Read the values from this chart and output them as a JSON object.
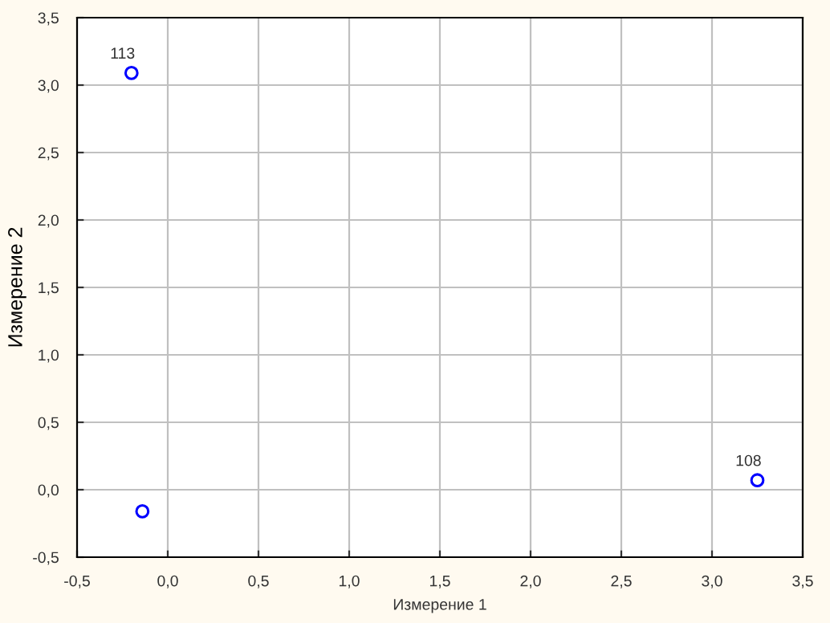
{
  "chart_data": {
    "type": "scatter",
    "xlabel": "Измерение 1",
    "ylabel": "Измерение 2",
    "x": [
      -0.2,
      3.25,
      -0.14
    ],
    "values": [
      3.09,
      0.07,
      -0.16
    ],
    "color": "#0000ff",
    "marker": "circle",
    "grid": true,
    "xlim": [
      -0.5,
      3.5
    ],
    "ylim": [
      -0.5,
      3.5
    ],
    "xticks": [
      {
        "value": -0.5,
        "label": "-0,5"
      },
      {
        "value": 0,
        "label": "0,0"
      },
      {
        "value": 0.5,
        "label": "0,5"
      },
      {
        "value": 1,
        "label": "1,0"
      },
      {
        "value": 1.5,
        "label": "1,5"
      },
      {
        "value": 2,
        "label": "2,0"
      },
      {
        "value": 2.5,
        "label": "2,5"
      },
      {
        "value": 3,
        "label": "3,0"
      },
      {
        "value": 3.5,
        "label": "3,5"
      }
    ],
    "yticks": [
      {
        "value": -0.5,
        "label": "-0,5"
      },
      {
        "value": 0,
        "label": "0,0"
      },
      {
        "value": 0.5,
        "label": "0,5"
      },
      {
        "value": 1,
        "label": "1,0"
      },
      {
        "value": 1.5,
        "label": "1,5"
      },
      {
        "value": 2,
        "label": "2,0"
      },
      {
        "value": 2.5,
        "label": "2,5"
      },
      {
        "value": 3,
        "label": "3,0"
      },
      {
        "value": 3.5,
        "label": "3,5"
      }
    ],
    "annotations": [
      {
        "text": "113",
        "x": -0.2,
        "y": 3.09
      },
      {
        "text": "108",
        "x": 3.25,
        "y": 0.07
      }
    ]
  }
}
